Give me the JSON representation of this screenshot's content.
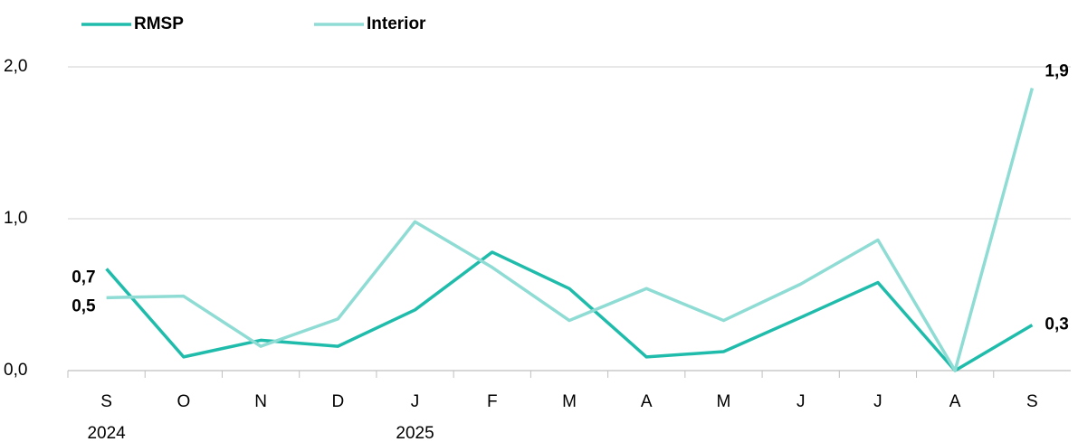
{
  "chart_data": {
    "type": "line",
    "categories": [
      "S",
      "O",
      "N",
      "D",
      "J",
      "F",
      "M",
      "A",
      "M",
      "J",
      "J",
      "A",
      "S"
    ],
    "category_years": [
      "2024",
      null,
      null,
      null,
      "2025",
      null,
      null,
      null,
      null,
      null,
      null,
      null,
      null
    ],
    "series": [
      {
        "name": "RMSP",
        "color": "#20bcab",
        "values": [
          0.67,
          0.09,
          0.2,
          0.16,
          0.4,
          0.78,
          0.54,
          0.09,
          0.125,
          0.35,
          0.58,
          0,
          0.3
        ],
        "value_labels": [
          "0,7",
          null,
          null,
          null,
          null,
          null,
          null,
          null,
          null,
          null,
          null,
          null,
          "0,3"
        ]
      },
      {
        "name": "Interior",
        "color": "#8fdcd5",
        "values": [
          0.48,
          0.49,
          0.16,
          0.34,
          0.98,
          0.68,
          0.33,
          0.54,
          0.33,
          0.57,
          0.86,
          0,
          1.86
        ],
        "value_labels": [
          "0,5",
          null,
          null,
          null,
          null,
          null,
          null,
          null,
          null,
          null,
          null,
          null,
          "1,9"
        ]
      }
    ],
    "ylim": [
      0,
      2
    ],
    "yticks": [
      {
        "value": 0,
        "label": "0,0"
      },
      {
        "value": 1,
        "label": "1,0"
      },
      {
        "value": 2,
        "label": "2,0"
      }
    ],
    "grid": true
  }
}
